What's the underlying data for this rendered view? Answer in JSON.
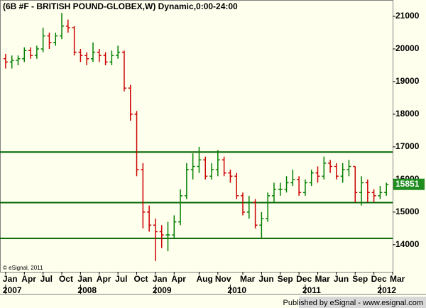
{
  "chart_data": {
    "type": "ohlc",
    "title": "(6B #F - BRITISH POUND-GLOBEX,W) Dynamic,0:00-24:00",
    "x": [
      0,
      1,
      2,
      3,
      4,
      5,
      6,
      7,
      8,
      9,
      10,
      11,
      12,
      13,
      14,
      15,
      16,
      17,
      18,
      19,
      20,
      21,
      22,
      23,
      24,
      25,
      26,
      27,
      28,
      29,
      30,
      31,
      32,
      33,
      34,
      35,
      36,
      37,
      38,
      39,
      40,
      41,
      42,
      43,
      44,
      45,
      46,
      47,
      48,
      49,
      50,
      51,
      52,
      53,
      54,
      55,
      56,
      57,
      58,
      59,
      60,
      61
    ],
    "open": [
      19700,
      19600,
      19650,
      19700,
      19950,
      19800,
      20000,
      20400,
      20200,
      20400,
      20700,
      20650,
      19900,
      19800,
      19700,
      19900,
      19800,
      19600,
      19800,
      19900,
      18800,
      18000,
      16300,
      15000,
      14600,
      14400,
      14300,
      14300,
      14700,
      15500,
      16300,
      16400,
      16600,
      16100,
      16300,
      16600,
      16200,
      16100,
      15500,
      15000,
      15300,
      14600,
      14800,
      15500,
      15700,
      15700,
      15900,
      16000,
      15600,
      15900,
      16200,
      16100,
      16500,
      16400,
      16100,
      16300,
      16400,
      15600,
      15900,
      15600,
      15500,
      15600
    ],
    "high": [
      19850,
      19800,
      19800,
      20050,
      20050,
      20100,
      20650,
      20500,
      20500,
      21100,
      20900,
      20700,
      20000,
      19900,
      20200,
      20000,
      19900,
      19950,
      20100,
      19950,
      18900,
      18100,
      16500,
      15200,
      14800,
      14600,
      14700,
      14900,
      15700,
      16500,
      16800,
      17000,
      16700,
      16500,
      16900,
      16700,
      16300,
      16200,
      15600,
      15500,
      15400,
      15000,
      15600,
      15900,
      15900,
      16100,
      16300,
      16100,
      16000,
      16300,
      16400,
      16700,
      16600,
      16500,
      16500,
      16600,
      16400,
      16100,
      16000,
      15700,
      15800,
      15900
    ],
    "low": [
      19400,
      19400,
      19500,
      19600,
      19700,
      19700,
      19900,
      20000,
      20100,
      20300,
      20500,
      19800,
      19600,
      19500,
      19600,
      19600,
      19500,
      19500,
      19700,
      18700,
      17800,
      16100,
      14500,
      14400,
      13500,
      13900,
      13800,
      14200,
      14600,
      15400,
      16000,
      16200,
      16000,
      16000,
      16100,
      16100,
      15900,
      15400,
      14900,
      14800,
      14500,
      14200,
      14700,
      15300,
      15500,
      15600,
      15800,
      15500,
      15500,
      15800,
      15900,
      16000,
      16200,
      16000,
      15900,
      16100,
      15300,
      15200,
      15300,
      15300,
      15400,
      15500
    ],
    "close": [
      19600,
      19650,
      19700,
      19950,
      19800,
      20000,
      20400,
      20200,
      20400,
      20700,
      20650,
      19900,
      19800,
      19700,
      19900,
      19800,
      19600,
      19800,
      19900,
      18800,
      18000,
      16300,
      15000,
      14600,
      14400,
      14300,
      14300,
      14700,
      15500,
      16300,
      16400,
      16600,
      16100,
      16300,
      16600,
      16200,
      16100,
      15500,
      15000,
      15300,
      14600,
      14800,
      15500,
      15700,
      15700,
      15900,
      16000,
      15600,
      15900,
      16200,
      16100,
      16500,
      16400,
      16100,
      16300,
      16400,
      15600,
      15900,
      15600,
      15500,
      15600,
      15851
    ],
    "up_color": "#008000",
    "down_color": "#cc0000",
    "xlim": [
      -0.9,
      62
    ],
    "ylim": [
      13170,
      21500
    ],
    "yticks": [
      14000,
      15000,
      16000,
      17000,
      18000,
      19000,
      20000,
      21000
    ],
    "xticks": [
      {
        "value": 0,
        "label": "Jan"
      },
      {
        "value": 3,
        "label": "Apr"
      },
      {
        "value": 6,
        "label": "Jul"
      },
      {
        "value": 9,
        "label": "Oct"
      },
      {
        "value": 12,
        "label": "Jan"
      },
      {
        "value": 15,
        "label": "Apr"
      },
      {
        "value": 18,
        "label": "Jul"
      },
      {
        "value": 21,
        "label": "Oct"
      },
      {
        "value": 24,
        "label": "Jan"
      },
      {
        "value": 27,
        "label": "Apr"
      },
      {
        "value": 31,
        "label": "Aug"
      },
      {
        "value": 34,
        "label": "Nov"
      },
      {
        "value": 38,
        "label": "Mar"
      },
      {
        "value": 41,
        "label": "Jun"
      },
      {
        "value": 44,
        "label": "Sep"
      },
      {
        "value": 47,
        "label": "Dec"
      },
      {
        "value": 50,
        "label": "Mar"
      },
      {
        "value": 53,
        "label": "Jun"
      },
      {
        "value": 56,
        "label": "Sep"
      },
      {
        "value": 59,
        "label": "Dec"
      },
      {
        "value": 62,
        "label": "Mar"
      }
    ],
    "year_ticks": [
      {
        "value": 0,
        "label": "2007"
      },
      {
        "value": 12,
        "label": "2008"
      },
      {
        "value": 24,
        "label": "2009"
      },
      {
        "value": 36,
        "label": "2010"
      },
      {
        "value": 48,
        "label": "2011"
      },
      {
        "value": 60,
        "label": "2012"
      }
    ],
    "hlines": [
      16840,
      15290,
      14195
    ],
    "hline_color": "#006400",
    "last_color": "#1e8c1e",
    "copyright": "© eSignal, 2011",
    "publisher": "Published by eSignal - www.esignal.com"
  }
}
